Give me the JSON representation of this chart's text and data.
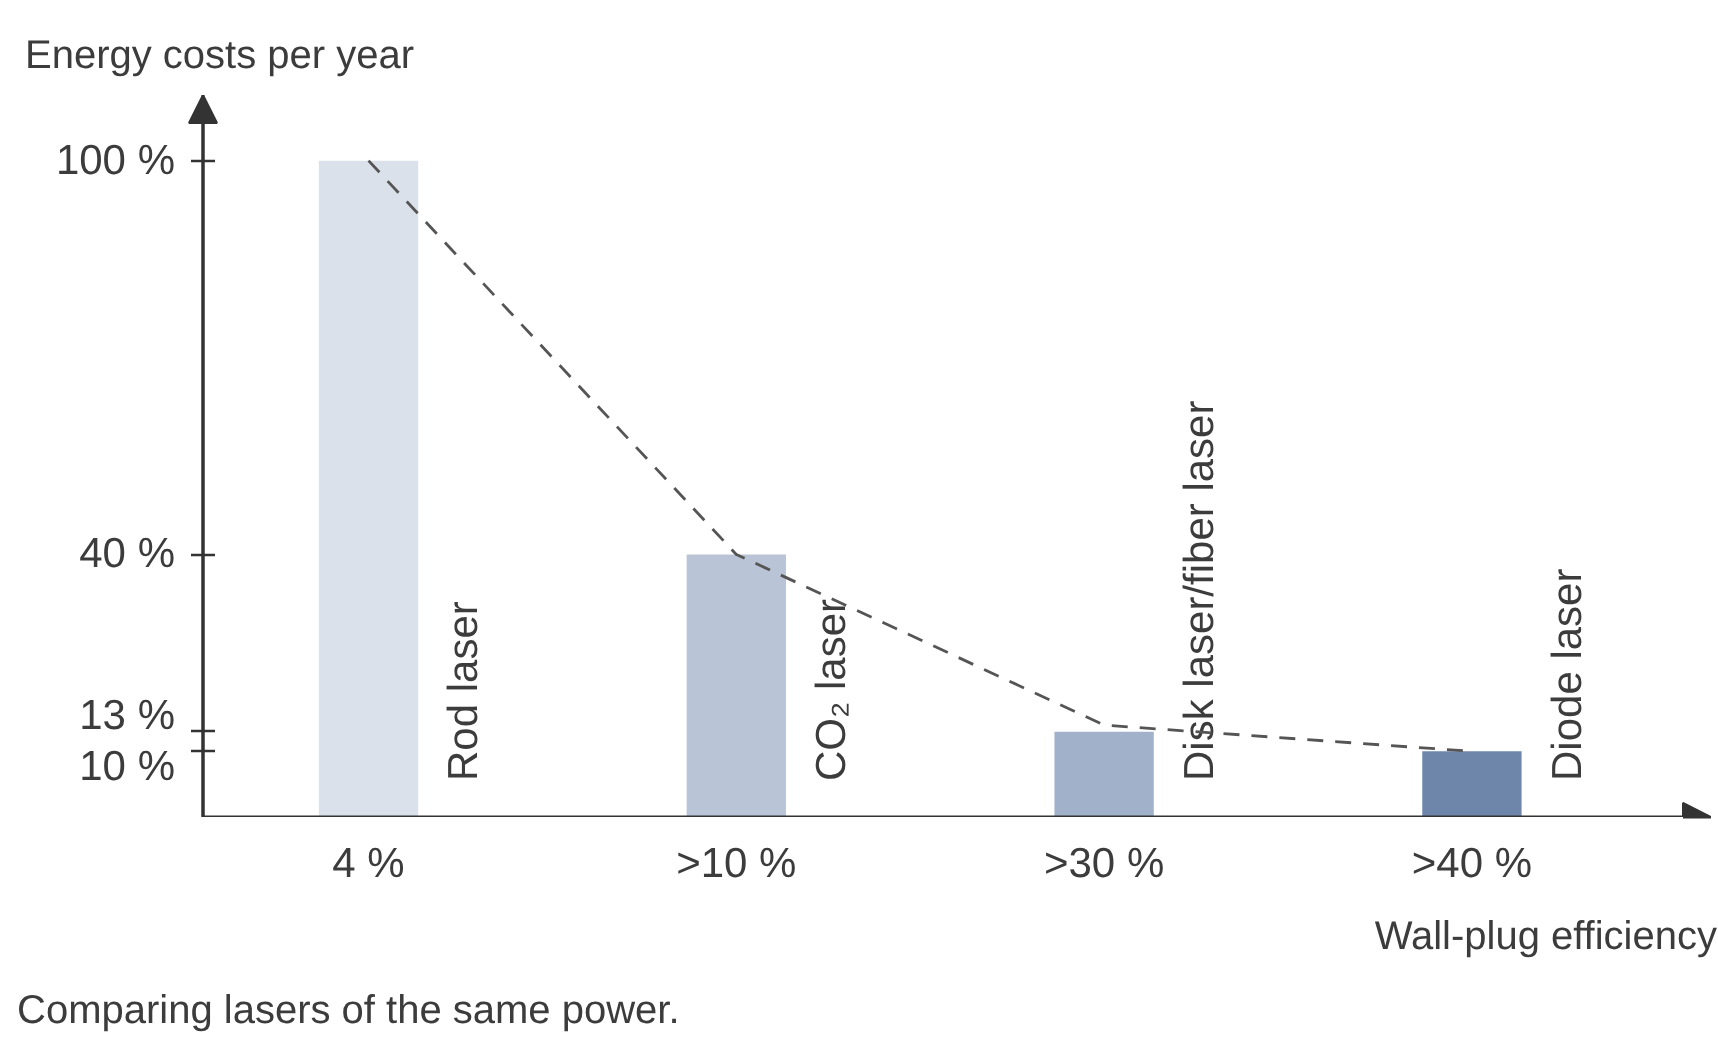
{
  "chart_data": {
    "type": "bar",
    "ylabel": "Energy costs per year",
    "xlabel": "Wall-plug efficiency",
    "categories": [
      "4 %",
      ">10 %",
      ">30 %",
      ">40 %"
    ],
    "ylim": [
      0,
      110
    ],
    "yticks": [
      {
        "value": 10,
        "label": "10 %"
      },
      {
        "value": 13,
        "label": "13 %"
      },
      {
        "value": 40,
        "label": "40 %"
      },
      {
        "value": 100,
        "label": "100 %"
      }
    ],
    "series": [
      {
        "name": "Rod laser",
        "color": "#dbe1ea",
        "values": [
          100,
          null,
          null,
          null
        ]
      },
      {
        "name": "CO₂ laser",
        "color": "#b9c4d6",
        "values": [
          null,
          40,
          null,
          null
        ]
      },
      {
        "name": "Disk laser/fiber laser",
        "color": "#a1b1c9",
        "values": [
          null,
          null,
          13,
          null
        ]
      },
      {
        "name": "Diode laser",
        "color": "#6e86aa",
        "values": [
          null,
          null,
          null,
          10
        ]
      },
      {
        "type": "line",
        "values": [
          100,
          40,
          14,
          10
        ],
        "color": "#555555",
        "line_style": "dashed"
      }
    ],
    "grid": false,
    "annotations": [
      "Comparing lasers of the same power."
    ]
  }
}
